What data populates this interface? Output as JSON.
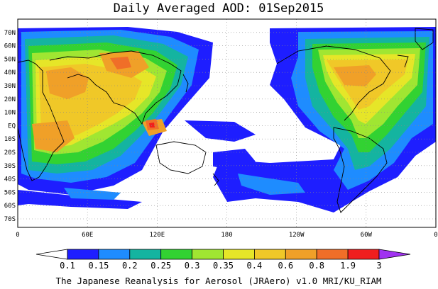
{
  "title": "Daily Averaged AOD: 01Sep2015",
  "lat_labels": [
    "70N",
    "60N",
    "50N",
    "40N",
    "30N",
    "20N",
    "10N",
    "EQ",
    "10S",
    "20S",
    "30S",
    "40S",
    "50S",
    "60S",
    "70S"
  ],
  "lon_labels": [
    "0",
    "60E",
    "120E",
    "180",
    "120W",
    "60W",
    "0"
  ],
  "colorbar": {
    "labels": [
      "0.1",
      "0.15",
      "0.2",
      "0.25",
      "0.3",
      "0.35",
      "0.4",
      "0.6",
      "0.8",
      "1.9",
      "3"
    ],
    "colors": [
      "#ffffff",
      "#1e1eff",
      "#1e8cff",
      "#14b4a0",
      "#32d232",
      "#a0e632",
      "#e6e628",
      "#f0c828",
      "#f0a028",
      "#f06e28",
      "#f01e1e",
      "#a032f0"
    ]
  },
  "footer": "The Japanese Reanalysis for Aerosol (JRAero) v1.0 MRI/KU_RIAM",
  "palette": {
    "white": "#ffffff",
    "blue": "#1e1eff",
    "light_blue": "#1e8cff",
    "teal": "#14b4a0",
    "green": "#32d232",
    "yellow_green": "#a0e632",
    "yellow": "#e6e628",
    "orange_yellow": "#f0c828",
    "orange": "#f0a028",
    "dark_orange": "#f06e28",
    "red": "#f01e1e",
    "purple": "#a032f0"
  }
}
